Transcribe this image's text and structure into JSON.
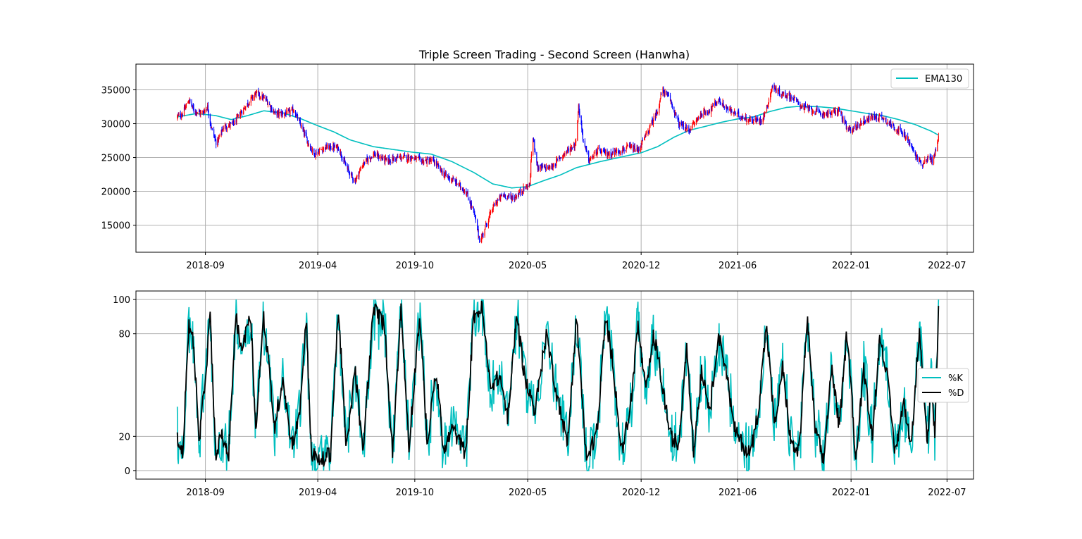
{
  "colors": {
    "up_candle": "#ff0000",
    "down_candle": "#0000ff",
    "ema": "#00bfbf",
    "k_line": "#00bfbf",
    "d_line": "#000000",
    "grid": "#b0b0b0",
    "axes": "#000000"
  },
  "chart_data": [
    {
      "type": "candlestick",
      "title": "Triple Screen Trading - Second Screen (Hanwha)",
      "x_tick_labels": [
        "2018-09",
        "2019-04",
        "2019-10",
        "2020-05",
        "2020-12",
        "2021-06",
        "2022-01",
        "2022-07"
      ],
      "x_ticks": [
        "2018-09-01",
        "2019-04-01",
        "2019-10-01",
        "2020-05-01",
        "2020-12-01",
        "2021-06-01",
        "2022-01-01",
        "2022-07-01"
      ],
      "xlim": [
        "2018-04-23",
        "2022-08-20"
      ],
      "y_tick_labels": [
        "15000",
        "20000",
        "25000",
        "30000",
        "35000"
      ],
      "y_ticks": [
        15000,
        20000,
        25000,
        30000,
        35000
      ],
      "ylim": [
        11000,
        38800
      ],
      "grid": true,
      "legend_position": "upper right",
      "legend": [
        {
          "name": "EMA130",
          "color": "#00bfbf"
        }
      ],
      "price_anchors": [
        [
          "2018-07-10",
          31000
        ],
        [
          "2018-07-20",
          31500
        ],
        [
          "2018-08-01",
          33500
        ],
        [
          "2018-08-10",
          32000
        ],
        [
          "2018-08-25",
          31500
        ],
        [
          "2018-09-05",
          32500
        ],
        [
          "2018-09-12",
          29500
        ],
        [
          "2018-09-22",
          27000
        ],
        [
          "2018-10-05",
          29500
        ],
        [
          "2018-10-25",
          30000
        ],
        [
          "2018-11-10",
          32000
        ],
        [
          "2018-11-25",
          33500
        ],
        [
          "2018-12-05",
          34500
        ],
        [
          "2018-12-25",
          33500
        ],
        [
          "2019-01-10",
          31500
        ],
        [
          "2019-02-01",
          31500
        ],
        [
          "2019-02-15",
          32000
        ],
        [
          "2019-03-01",
          29500
        ],
        [
          "2019-03-15",
          27000
        ],
        [
          "2019-03-25",
          25500
        ],
        [
          "2019-04-15",
          26500
        ],
        [
          "2019-05-10",
          26500
        ],
        [
          "2019-05-25",
          23500
        ],
        [
          "2019-06-10",
          21500
        ],
        [
          "2019-06-25",
          24000
        ],
        [
          "2019-07-15",
          25500
        ],
        [
          "2019-08-10",
          24500
        ],
        [
          "2019-09-01",
          25000
        ],
        [
          "2019-09-25",
          25000
        ],
        [
          "2019-10-15",
          24500
        ],
        [
          "2019-11-05",
          24500
        ],
        [
          "2019-11-25",
          22500
        ],
        [
          "2019-12-15",
          21500
        ],
        [
          "2020-01-05",
          20000
        ],
        [
          "2020-01-20",
          17000
        ],
        [
          "2020-02-01",
          12500
        ],
        [
          "2020-02-12",
          15000
        ],
        [
          "2020-02-28",
          18000
        ],
        [
          "2020-03-15",
          19500
        ],
        [
          "2020-04-05",
          19000
        ],
        [
          "2020-04-25",
          20500
        ],
        [
          "2020-05-05",
          21000
        ],
        [
          "2020-05-10",
          28500
        ],
        [
          "2020-05-20",
          23500
        ],
        [
          "2020-06-15",
          23500
        ],
        [
          "2020-07-01",
          25000
        ],
        [
          "2020-07-15",
          26000
        ],
        [
          "2020-07-30",
          27000
        ],
        [
          "2020-08-05",
          32500
        ],
        [
          "2020-08-15",
          27000
        ],
        [
          "2020-08-25",
          24500
        ],
        [
          "2020-09-10",
          26000
        ],
        [
          "2020-10-01",
          25500
        ],
        [
          "2020-10-20",
          26000
        ],
        [
          "2020-11-10",
          26500
        ],
        [
          "2020-11-25",
          26000
        ],
        [
          "2020-12-15",
          29000
        ],
        [
          "2021-01-01",
          32000
        ],
        [
          "2021-01-10",
          35000
        ],
        [
          "2021-01-25",
          33500
        ],
        [
          "2021-02-10",
          30000
        ],
        [
          "2021-03-01",
          29000
        ],
        [
          "2021-03-25",
          31500
        ],
        [
          "2021-04-10",
          32000
        ],
        [
          "2021-04-25",
          33500
        ],
        [
          "2021-05-15",
          32000
        ],
        [
          "2021-06-10",
          31000
        ],
        [
          "2021-06-25",
          30500
        ],
        [
          "2021-07-15",
          30500
        ],
        [
          "2021-07-25",
          32000
        ],
        [
          "2021-08-05",
          35500
        ],
        [
          "2021-08-20",
          34500
        ],
        [
          "2021-09-10",
          34000
        ],
        [
          "2021-10-01",
          32500
        ],
        [
          "2021-10-20",
          32000
        ],
        [
          "2021-11-05",
          31500
        ],
        [
          "2021-11-25",
          31500
        ],
        [
          "2021-12-10",
          32000
        ],
        [
          "2021-12-25",
          29000
        ],
        [
          "2022-01-10",
          29500
        ],
        [
          "2022-01-25",
          30500
        ],
        [
          "2022-02-10",
          31000
        ],
        [
          "2022-03-01",
          31000
        ],
        [
          "2022-03-15",
          30000
        ],
        [
          "2022-04-01",
          29000
        ],
        [
          "2022-04-15",
          28000
        ],
        [
          "2022-04-25",
          26500
        ],
        [
          "2022-05-05",
          25000
        ],
        [
          "2022-05-15",
          24000
        ],
        [
          "2022-05-25",
          25000
        ],
        [
          "2022-06-05",
          24500
        ],
        [
          "2022-06-15",
          28000
        ]
      ],
      "ema_anchors": [
        [
          "2018-07-10",
          31000
        ],
        [
          "2018-08-15",
          31500
        ],
        [
          "2018-09-20",
          31200
        ],
        [
          "2018-10-20",
          30600
        ],
        [
          "2018-11-20",
          31200
        ],
        [
          "2018-12-20",
          31900
        ],
        [
          "2019-01-25",
          31600
        ],
        [
          "2019-03-01",
          30700
        ],
        [
          "2019-04-01",
          29700
        ],
        [
          "2019-05-01",
          28800
        ],
        [
          "2019-06-01",
          27600
        ],
        [
          "2019-07-15",
          26600
        ],
        [
          "2019-08-20",
          26200
        ],
        [
          "2019-09-25",
          25800
        ],
        [
          "2019-11-01",
          25500
        ],
        [
          "2019-12-10",
          24400
        ],
        [
          "2020-01-20",
          22800
        ],
        [
          "2020-02-25",
          21100
        ],
        [
          "2020-04-01",
          20500
        ],
        [
          "2020-05-01",
          20700
        ],
        [
          "2020-06-01",
          21600
        ],
        [
          "2020-07-01",
          22400
        ],
        [
          "2020-08-01",
          23500
        ],
        [
          "2020-09-15",
          24400
        ],
        [
          "2020-11-01",
          25200
        ],
        [
          "2020-12-01",
          25700
        ],
        [
          "2021-01-01",
          26600
        ],
        [
          "2021-02-01",
          28000
        ],
        [
          "2021-03-01",
          29000
        ],
        [
          "2021-04-01",
          29600
        ],
        [
          "2021-05-01",
          30200
        ],
        [
          "2021-06-01",
          30700
        ],
        [
          "2021-07-01",
          31000
        ],
        [
          "2021-08-01",
          31800
        ],
        [
          "2021-09-01",
          32400
        ],
        [
          "2021-10-01",
          32600
        ],
        [
          "2021-11-01",
          32500
        ],
        [
          "2021-12-01",
          32300
        ],
        [
          "2022-01-01",
          31900
        ],
        [
          "2022-02-01",
          31500
        ],
        [
          "2022-03-01",
          31200
        ],
        [
          "2022-04-01",
          30600
        ],
        [
          "2022-05-01",
          29900
        ],
        [
          "2022-06-01",
          28900
        ],
        [
          "2022-06-15",
          28300
        ]
      ],
      "date_start": "2018-07-10",
      "date_end": "2022-06-15"
    },
    {
      "type": "line",
      "series": [
        {
          "name": "%K",
          "color": "#00bfbf"
        },
        {
          "name": "%D",
          "color": "#000000"
        }
      ],
      "x_tick_labels": [
        "2018-09",
        "2019-04",
        "2019-10",
        "2020-05",
        "2020-12",
        "2021-06",
        "2022-01",
        "2022-07"
      ],
      "x_ticks": [
        "2018-09-01",
        "2019-04-01",
        "2019-10-01",
        "2020-05-01",
        "2020-12-01",
        "2021-06-01",
        "2022-01-01",
        "2022-07-01"
      ],
      "xlim": [
        "2018-04-23",
        "2022-08-20"
      ],
      "y_tick_labels": [
        "0",
        "20",
        "80",
        "100"
      ],
      "y_ticks": [
        0,
        20,
        80,
        100
      ],
      "ylim": [
        -5,
        105
      ],
      "grid": true,
      "legend_position": "center right",
      "d_anchors": [
        [
          "2018-07-10",
          20
        ],
        [
          "2018-07-20",
          10
        ],
        [
          "2018-08-01",
          85
        ],
        [
          "2018-08-10",
          75
        ],
        [
          "2018-08-20",
          15
        ],
        [
          "2018-09-01",
          55
        ],
        [
          "2018-09-10",
          90
        ],
        [
          "2018-09-20",
          10
        ],
        [
          "2018-10-01",
          20
        ],
        [
          "2018-10-15",
          10
        ],
        [
          "2018-10-28",
          90
        ],
        [
          "2018-11-10",
          70
        ],
        [
          "2018-11-25",
          95
        ],
        [
          "2018-12-05",
          25
        ],
        [
          "2018-12-20",
          90
        ],
        [
          "2019-01-10",
          25
        ],
        [
          "2019-01-25",
          55
        ],
        [
          "2019-02-10",
          15
        ],
        [
          "2019-02-25",
          30
        ],
        [
          "2019-03-10",
          90
        ],
        [
          "2019-03-20",
          10
        ],
        [
          "2019-04-05",
          5
        ],
        [
          "2019-04-25",
          10
        ],
        [
          "2019-05-10",
          95
        ],
        [
          "2019-05-25",
          10
        ],
        [
          "2019-06-10",
          60
        ],
        [
          "2019-06-25",
          10
        ],
        [
          "2019-07-15",
          95
        ],
        [
          "2019-08-05",
          85
        ],
        [
          "2019-08-20",
          10
        ],
        [
          "2019-09-05",
          95
        ],
        [
          "2019-09-20",
          15
        ],
        [
          "2019-10-10",
          90
        ],
        [
          "2019-10-25",
          15
        ],
        [
          "2019-11-10",
          60
        ],
        [
          "2019-11-25",
          10
        ],
        [
          "2019-12-10",
          25
        ],
        [
          "2020-01-05",
          10
        ],
        [
          "2020-01-20",
          90
        ],
        [
          "2020-02-05",
          95
        ],
        [
          "2020-02-20",
          50
        ],
        [
          "2020-03-10",
          55
        ],
        [
          "2020-03-25",
          30
        ],
        [
          "2020-04-10",
          92
        ],
        [
          "2020-04-25",
          55
        ],
        [
          "2020-05-15",
          35
        ],
        [
          "2020-06-05",
          80
        ],
        [
          "2020-06-25",
          45
        ],
        [
          "2020-07-15",
          15
        ],
        [
          "2020-08-01",
          90
        ],
        [
          "2020-08-20",
          5
        ],
        [
          "2020-09-10",
          25
        ],
        [
          "2020-09-25",
          90
        ],
        [
          "2020-10-10",
          60
        ],
        [
          "2020-10-25",
          10
        ],
        [
          "2020-11-10",
          35
        ],
        [
          "2020-11-25",
          85
        ],
        [
          "2020-12-10",
          45
        ],
        [
          "2020-12-25",
          80
        ],
        [
          "2021-01-10",
          50
        ],
        [
          "2021-01-25",
          20
        ],
        [
          "2021-02-10",
          15
        ],
        [
          "2021-02-25",
          75
        ],
        [
          "2021-03-10",
          10
        ],
        [
          "2021-03-25",
          60
        ],
        [
          "2021-04-10",
          35
        ],
        [
          "2021-04-25",
          80
        ],
        [
          "2021-05-10",
          60
        ],
        [
          "2021-05-25",
          25
        ],
        [
          "2021-06-10",
          15
        ],
        [
          "2021-06-25",
          10
        ],
        [
          "2021-07-10",
          35
        ],
        [
          "2021-07-25",
          85
        ],
        [
          "2021-08-10",
          25
        ],
        [
          "2021-08-25",
          60
        ],
        [
          "2021-09-10",
          15
        ],
        [
          "2021-09-25",
          10
        ],
        [
          "2021-10-10",
          90
        ],
        [
          "2021-10-25",
          25
        ],
        [
          "2021-11-10",
          5
        ],
        [
          "2021-11-25",
          60
        ],
        [
          "2021-12-10",
          25
        ],
        [
          "2021-12-25",
          85
        ],
        [
          "2022-01-10",
          5
        ],
        [
          "2022-01-25",
          60
        ],
        [
          "2022-02-10",
          20
        ],
        [
          "2022-02-25",
          80
        ],
        [
          "2022-03-10",
          55
        ],
        [
          "2022-03-25",
          10
        ],
        [
          "2022-04-10",
          40
        ],
        [
          "2022-04-25",
          15
        ],
        [
          "2022-05-10",
          85
        ],
        [
          "2022-05-25",
          15
        ],
        [
          "2022-06-01",
          55
        ],
        [
          "2022-06-08",
          20
        ],
        [
          "2022-06-15",
          92
        ]
      ],
      "date_start": "2018-07-10",
      "date_end": "2022-06-15"
    }
  ]
}
